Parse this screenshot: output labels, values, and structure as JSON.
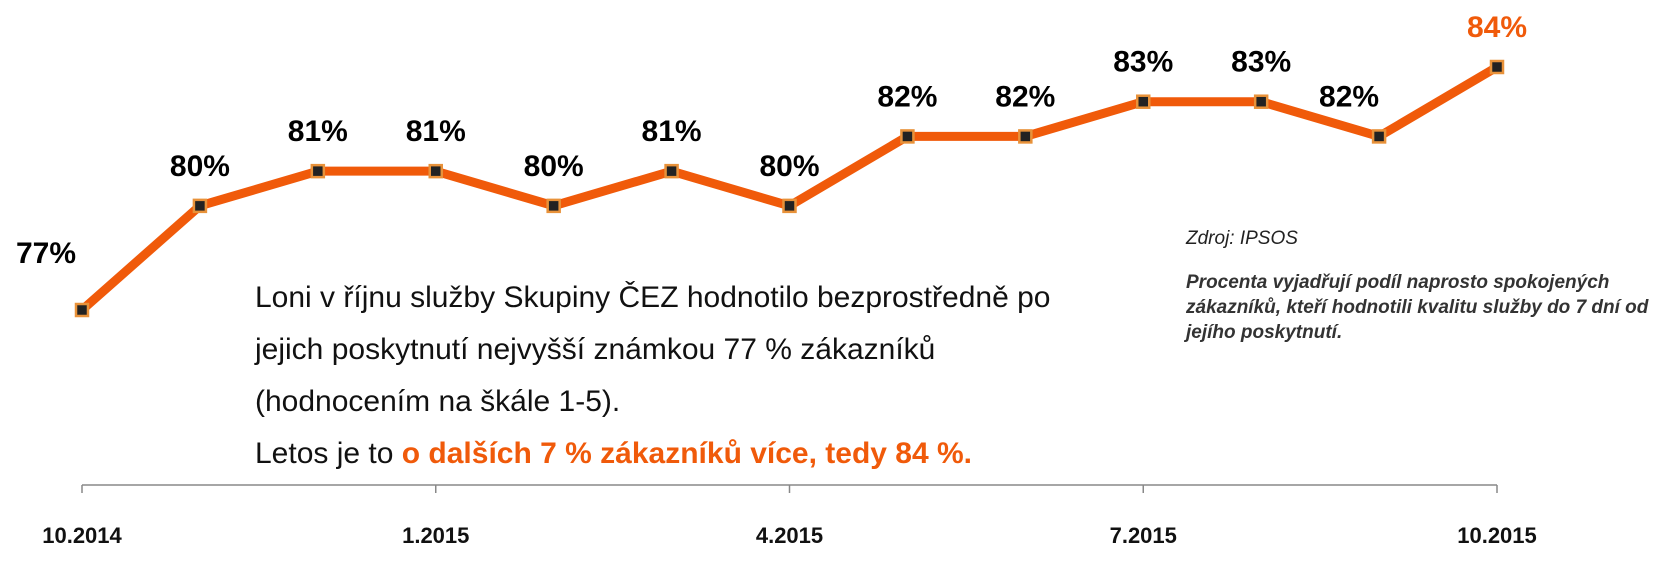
{
  "chart_data": {
    "type": "line",
    "categories": [
      "10.2014",
      null,
      null,
      "1.2015",
      null,
      null,
      "4.2015",
      null,
      null,
      "7.2015",
      null,
      null,
      "10.2015"
    ],
    "series": [
      {
        "name": null,
        "color": "#f05a0a",
        "values": [
          77,
          80,
          81,
          81,
          80,
          81,
          80,
          82,
          82,
          83,
          83,
          82,
          84
        ],
        "value_labels": [
          "77%",
          "80%",
          "81%",
          "81%",
          "80%",
          "81%",
          "80%",
          "82%",
          "82%",
          "83%",
          "83%",
          "82%",
          "84%"
        ],
        "value_label_colors": [
          "#000",
          "#000",
          "#000",
          "#000",
          "#000",
          "#000",
          "#000",
          "#000",
          "#000",
          "#000",
          "#000",
          "#000",
          "#f05a0a"
        ]
      }
    ],
    "text": [
      "Loni v říjnu služby Skupiny ČEZ hodnotilo bezprostředně po jejich poskytnutí nejvyšší známkou 77 % zákazníků (hodnocením na škále 1-5).",
      "Letos je to ",
      "o dalších 7 % zákazníků více, tedy 84 %."
    ],
    "source": "Zdroj: IPSOS",
    "note": "Procenta vyjadřují podíl naprosto spokojených zákazníků, kteří hodnotili kvalitu služby do 7 dní od jejího poskytnutí."
  }
}
